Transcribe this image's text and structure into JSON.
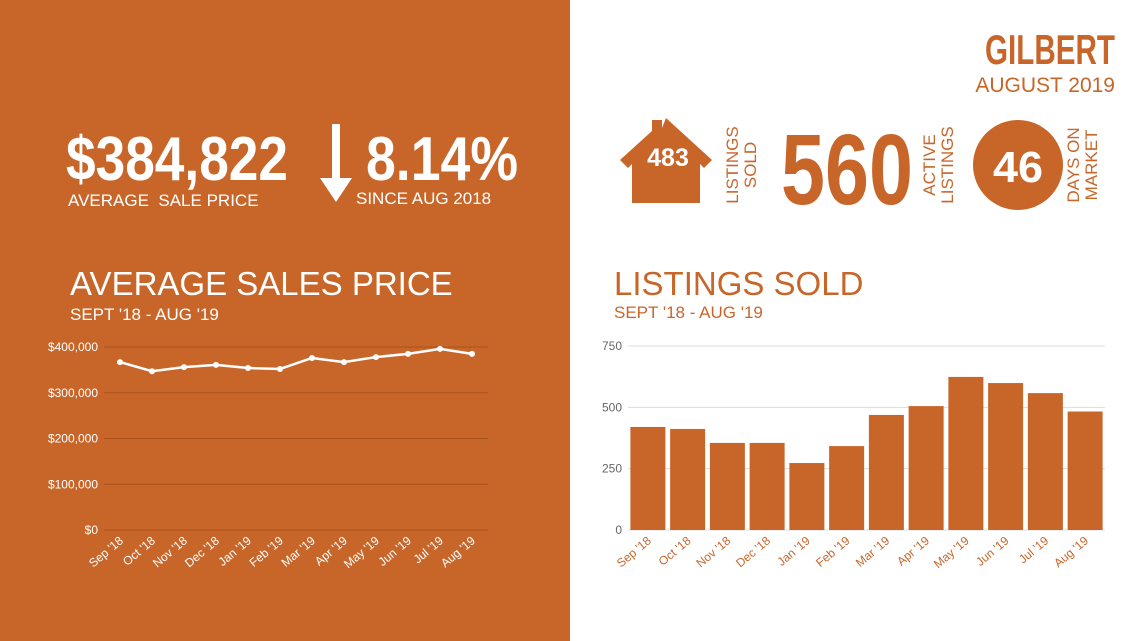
{
  "header": {
    "title": "GILBERT",
    "date": "AUGUST 2019"
  },
  "stats": {
    "price": "$384,822",
    "price_label": "AVERAGE  SALE PRICE",
    "change": "8.14%",
    "change_label": "SINCE AUG 2018",
    "listings_sold": "483",
    "listings_sold_label": [
      "LISTINGS",
      "SOLD"
    ],
    "active": "560",
    "active_label": [
      "ACTIVE",
      "LISTINGS"
    ],
    "days": "46",
    "days_label": [
      "DAYS ON",
      "MARKET"
    ]
  },
  "chart_data": [
    {
      "type": "line",
      "title": "AVERAGE SALES PRICE",
      "subtitle": "SEPT '18 - AUG '19",
      "categories": [
        "Sep '18",
        "Oct '18",
        "Nov '18",
        "Dec '18",
        "Jan '19",
        "Feb '19",
        "Mar '19",
        "Apr '19",
        "May '19",
        "Jun '19",
        "Jul '19",
        "Aug '19"
      ],
      "values": [
        367000,
        347000,
        356000,
        361000,
        354000,
        352000,
        376000,
        367000,
        378000,
        385000,
        396000,
        385000
      ],
      "color": "#ffffff",
      "ylim": [
        0,
        400000
      ],
      "yticks": [
        {
          "value": 0,
          "label": "$0"
        },
        {
          "value": 100000,
          "label": "$100,000"
        },
        {
          "value": 200000,
          "label": "$200,000"
        },
        {
          "value": 300000,
          "label": "$300,000"
        },
        {
          "value": 400000,
          "label": "$400,000"
        }
      ],
      "grid": true
    },
    {
      "type": "bar",
      "title": "LISTINGS SOLD",
      "subtitle": "SEPT '18 - AUG '19",
      "categories": [
        "Sep '18",
        "Oct '18",
        "Nov '18",
        "Dec '18",
        "Jan '19",
        "Feb '19",
        "Mar '19",
        "Apr '19",
        "May '19",
        "Jun '19",
        "Jul '19",
        "Aug '19"
      ],
      "values": [
        420,
        412,
        355,
        355,
        273,
        342,
        469,
        505,
        624,
        599,
        558,
        483
      ],
      "color": "#c8662a",
      "ylim": [
        0,
        750
      ],
      "yticks": [
        0,
        250,
        500,
        750
      ],
      "grid": true
    }
  ]
}
